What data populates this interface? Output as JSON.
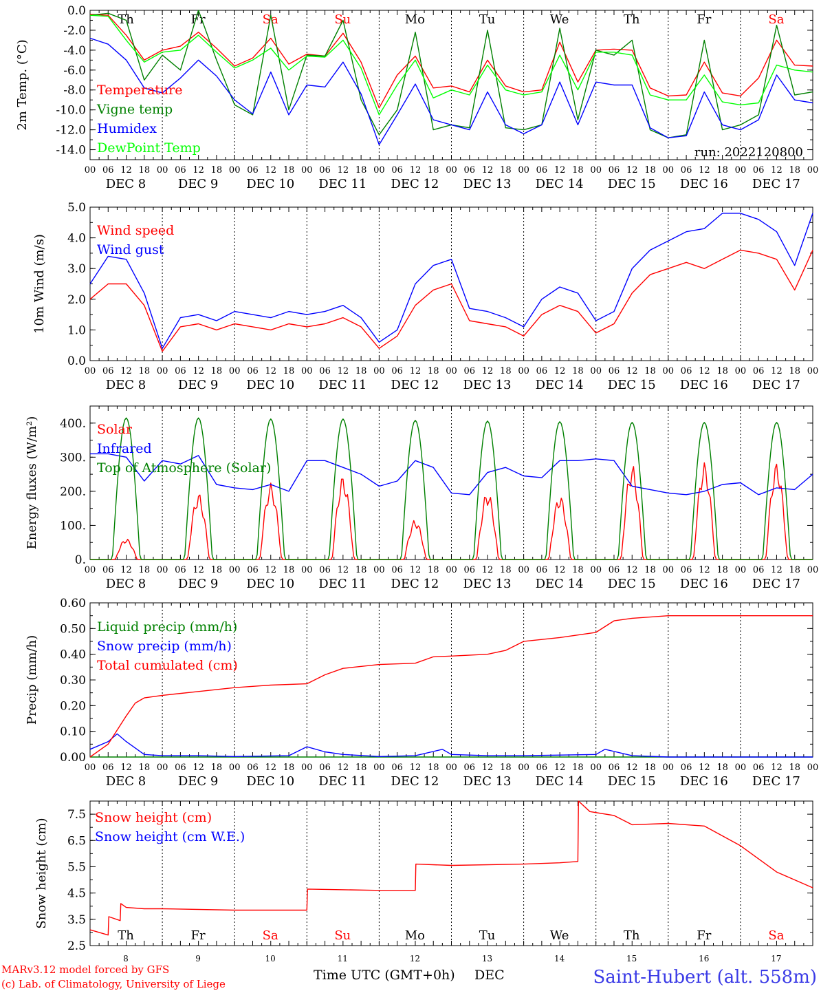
{
  "colors": {
    "red": "#ff0000",
    "green": "#008000",
    "blue": "#0000ff",
    "light_green": "#00ff00",
    "weekend_red": "#ff0000",
    "blue_title": "#3a3ae6"
  },
  "days": {
    "weekday_labels": [
      "Th",
      "Fr",
      "Sa",
      "Su",
      "Mo",
      "Tu",
      "We",
      "Th",
      "Fr",
      "Sa"
    ],
    "weekend_flags": [
      false,
      false,
      true,
      true,
      false,
      false,
      false,
      false,
      false,
      true
    ],
    "date_labels": [
      "DEC  8",
      "DEC  9",
      "DEC 10",
      "DEC 11",
      "DEC 12",
      "DEC 13",
      "DEC 14",
      "DEC 15",
      "DEC 16",
      "DEC 17"
    ],
    "hour_labels": [
      "00",
      "06",
      "12",
      "18"
    ],
    "final_hour": "00",
    "day_numbers": [
      "8",
      "9",
      "10",
      "11",
      "12",
      "13",
      "14",
      "15",
      "16",
      "17"
    ]
  },
  "footer": {
    "credit1": "MARv3.12 model forced by GFS",
    "credit2": "(c) Lab. of Climatology, University of Liege",
    "xlabel": "Time UTC (GMT+0h)",
    "month": "DEC",
    "station": "Saint-Hubert (alt. 558m)"
  },
  "chart_data": [
    {
      "type": "line",
      "ylabel": "2m Temp. (°C)",
      "ylim": [
        -15,
        0
      ],
      "yticks": [
        "0.0",
        "-2.0",
        "-4.0",
        "-6.0",
        "-8.0",
        "-10.0",
        "-12.0",
        "-14.0"
      ],
      "ytick_values": [
        0,
        -2,
        -4,
        -6,
        -8,
        -10,
        -12,
        -14
      ],
      "annotation": "run: 2022120800",
      "x_unit": "hours since DEC 8 00 UTC",
      "series": [
        {
          "name": "Temperature",
          "color": "#ff0000",
          "x": [
            0,
            6,
            12,
            18,
            24,
            30,
            36,
            42,
            48,
            54,
            60,
            66,
            72,
            78,
            84,
            90,
            96,
            102,
            108,
            114,
            120,
            126,
            132,
            138,
            144,
            150,
            156,
            162,
            168,
            174,
            180,
            186,
            192,
            198,
            204,
            210,
            216,
            222,
            228,
            234,
            240
          ],
          "values": [
            -0.4,
            -0.5,
            -2.5,
            -5.0,
            -4.0,
            -3.6,
            -2.2,
            -3.8,
            -5.6,
            -4.8,
            -2.8,
            -5.4,
            -4.4,
            -4.6,
            -2.3,
            -5.2,
            -9.8,
            -6.5,
            -4.6,
            -7.8,
            -7.6,
            -8.2,
            -5.0,
            -7.6,
            -8.2,
            -8.0,
            -3.2,
            -7.2,
            -4.0,
            -3.9,
            -4.0,
            -7.8,
            -8.6,
            -8.5,
            -5.2,
            -8.3,
            -8.6,
            -6.8,
            -3.0,
            -5.5,
            -5.6
          ]
        },
        {
          "name": "Vigne temp",
          "color": "#008000",
          "x": [
            0,
            6,
            12,
            18,
            24,
            30,
            36,
            42,
            48,
            54,
            60,
            66,
            72,
            78,
            84,
            90,
            96,
            102,
            108,
            114,
            120,
            126,
            132,
            138,
            144,
            150,
            156,
            162,
            168,
            174,
            180,
            186,
            192,
            198,
            204,
            210,
            216,
            222,
            228,
            234,
            240
          ],
          "values": [
            -0.5,
            -0.3,
            -1.0,
            -7.0,
            -4.5,
            -6.0,
            0.0,
            -5.0,
            -9.5,
            -10.5,
            -0.5,
            -10.0,
            -4.5,
            -4.6,
            -1.0,
            -9.0,
            -12.5,
            -10.0,
            -2.2,
            -12.0,
            -11.5,
            -11.8,
            -2.0,
            -11.8,
            -12.0,
            -11.5,
            -1.8,
            -11.0,
            -4.0,
            -4.5,
            -3.0,
            -12.0,
            -12.8,
            -12.5,
            -3.0,
            -12.0,
            -11.5,
            -10.5,
            -1.5,
            -8.5,
            -8.2
          ]
        },
        {
          "name": "Humidex",
          "color": "#0000ff",
          "x": [
            0,
            6,
            12,
            18,
            24,
            30,
            36,
            42,
            48,
            54,
            60,
            66,
            72,
            78,
            84,
            90,
            96,
            102,
            108,
            114,
            120,
            126,
            132,
            138,
            144,
            150,
            156,
            162,
            168,
            174,
            180,
            186,
            192,
            198,
            204,
            210,
            216,
            222,
            228,
            234,
            240
          ],
          "values": [
            -2.8,
            -3.4,
            -5.0,
            -7.8,
            -8.3,
            -6.8,
            -5.0,
            -6.6,
            -9.0,
            -10.4,
            -6.2,
            -10.5,
            -7.5,
            -7.7,
            -5.2,
            -8.4,
            -13.5,
            -10.5,
            -7.4,
            -11.0,
            -11.5,
            -12.0,
            -8.2,
            -11.5,
            -12.4,
            -11.5,
            -7.2,
            -11.5,
            -7.2,
            -7.5,
            -7.5,
            -11.8,
            -12.8,
            -12.6,
            -8.2,
            -11.5,
            -12.0,
            -11.0,
            -6.5,
            -9.0,
            -9.3
          ]
        },
        {
          "name": "DewPoint Temp",
          "color": "#00ff00",
          "x": [
            0,
            6,
            12,
            18,
            24,
            30,
            36,
            42,
            48,
            54,
            60,
            66,
            72,
            78,
            84,
            90,
            96,
            102,
            108,
            114,
            120,
            126,
            132,
            138,
            144,
            150,
            156,
            162,
            168,
            174,
            180,
            186,
            192,
            198,
            204,
            210,
            216,
            222,
            228,
            234,
            240
          ],
          "values": [
            -0.5,
            -0.6,
            -3.0,
            -5.2,
            -4.2,
            -4.0,
            -2.5,
            -4.2,
            -5.8,
            -5.0,
            -3.8,
            -6.0,
            -4.6,
            -4.7,
            -3.0,
            -5.8,
            -10.5,
            -7.5,
            -5.0,
            -8.8,
            -8.0,
            -8.5,
            -5.5,
            -8.0,
            -8.5,
            -8.2,
            -4.5,
            -8.0,
            -4.2,
            -4.2,
            -4.5,
            -8.5,
            -9.0,
            -9.0,
            -6.5,
            -9.2,
            -9.5,
            -9.3,
            -5.5,
            -6.0,
            -6.2
          ]
        }
      ]
    },
    {
      "type": "line",
      "ylabel": "10m Wind (m/s)",
      "ylim": [
        0,
        5
      ],
      "yticks": [
        "0.0",
        "1.0",
        "2.0",
        "3.0",
        "4.0",
        "5.0"
      ],
      "ytick_values": [
        0,
        1,
        2,
        3,
        4,
        5
      ],
      "x_unit": "hours since DEC 8 00 UTC",
      "series": [
        {
          "name": "Wind speed",
          "color": "#ff0000",
          "x": [
            0,
            6,
            12,
            18,
            24,
            30,
            36,
            42,
            48,
            54,
            60,
            66,
            72,
            78,
            84,
            90,
            96,
            102,
            108,
            114,
            120,
            126,
            132,
            138,
            144,
            150,
            156,
            162,
            168,
            174,
            180,
            186,
            192,
            198,
            204,
            210,
            216,
            222,
            228,
            234,
            240
          ],
          "values": [
            2.0,
            2.5,
            2.5,
            1.8,
            0.3,
            1.1,
            1.2,
            1.0,
            1.2,
            1.1,
            1.0,
            1.2,
            1.1,
            1.2,
            1.4,
            1.1,
            0.4,
            0.8,
            1.8,
            2.3,
            2.5,
            1.3,
            1.2,
            1.1,
            0.8,
            1.5,
            1.8,
            1.6,
            0.9,
            1.2,
            2.2,
            2.8,
            3.0,
            3.2,
            3.0,
            3.3,
            3.6,
            3.5,
            3.3,
            2.3,
            3.6
          ]
        },
        {
          "name": "Wind gust",
          "color": "#0000ff",
          "x": [
            0,
            6,
            12,
            18,
            24,
            30,
            36,
            42,
            48,
            54,
            60,
            66,
            72,
            78,
            84,
            90,
            96,
            102,
            108,
            114,
            120,
            126,
            132,
            138,
            144,
            150,
            156,
            162,
            168,
            174,
            180,
            186,
            192,
            198,
            204,
            210,
            216,
            222,
            228,
            234,
            240
          ],
          "values": [
            2.5,
            3.4,
            3.3,
            2.2,
            0.4,
            1.4,
            1.5,
            1.3,
            1.6,
            1.5,
            1.4,
            1.6,
            1.5,
            1.6,
            1.8,
            1.4,
            0.6,
            1.0,
            2.5,
            3.1,
            3.3,
            1.7,
            1.6,
            1.4,
            1.1,
            2.0,
            2.4,
            2.2,
            1.3,
            1.6,
            3.0,
            3.6,
            3.9,
            4.2,
            4.3,
            4.8,
            4.8,
            4.6,
            4.2,
            3.1,
            4.8
          ]
        }
      ]
    },
    {
      "type": "line",
      "ylabel": "Energy fluxes (W/m²)",
      "ylim": [
        0,
        450
      ],
      "yticks": [
        "0.",
        "100.",
        "200.",
        "300.",
        "400."
      ],
      "ytick_values": [
        0,
        100,
        200,
        300,
        400
      ],
      "x_unit": "hours since DEC 8 00 UTC",
      "solar_peak_hour_of_day": 12,
      "series": [
        {
          "name": "Solar",
          "color": "#ff0000",
          "daily_peak": [
            55,
            175,
            200,
            220,
            105,
            180,
            170,
            250,
            255,
            255
          ]
        },
        {
          "name": "Infrared",
          "color": "#0000ff",
          "x": [
            0,
            6,
            12,
            18,
            24,
            30,
            36,
            42,
            48,
            54,
            60,
            66,
            72,
            78,
            84,
            90,
            96,
            102,
            108,
            114,
            120,
            126,
            132,
            138,
            144,
            150,
            156,
            162,
            168,
            174,
            180,
            186,
            192,
            198,
            204,
            210,
            216,
            222,
            228,
            234,
            240
          ],
          "values": [
            310,
            310,
            300,
            230,
            290,
            280,
            305,
            220,
            210,
            205,
            220,
            200,
            290,
            290,
            270,
            250,
            215,
            230,
            290,
            270,
            195,
            190,
            255,
            270,
            245,
            240,
            290,
            290,
            295,
            290,
            215,
            205,
            195,
            190,
            200,
            220,
            225,
            190,
            210,
            205,
            250
          ]
        },
        {
          "name": "Top of Atmosphere (Solar)",
          "color": "#008000",
          "daily_peak": [
            415,
            415,
            412,
            412,
            408,
            406,
            404,
            402,
            402,
            402
          ]
        }
      ]
    },
    {
      "type": "line",
      "ylabel": "Precip (mm/h)",
      "ylim": [
        0,
        0.6
      ],
      "yticks": [
        "0.00",
        "0.10",
        "0.20",
        "0.30",
        "0.40",
        "0.50",
        "0.60"
      ],
      "ytick_values": [
        0,
        0.1,
        0.2,
        0.3,
        0.4,
        0.5,
        0.6
      ],
      "x_unit": "hours since DEC 8 00 UTC",
      "series": [
        {
          "name": "Liquid precip (mm/h)",
          "color": "#008000",
          "x": [
            0,
            240
          ],
          "values": [
            0,
            0
          ]
        },
        {
          "name": "Snow precip (mm/h)",
          "color": "#0000ff",
          "x": [
            0,
            6,
            9,
            12,
            18,
            24,
            36,
            48,
            66,
            72,
            78,
            84,
            96,
            108,
            117,
            120,
            132,
            144,
            168,
            171,
            180,
            192,
            216,
            240
          ],
          "values": [
            0.03,
            0.06,
            0.09,
            0.06,
            0.01,
            0.005,
            0.005,
            0.002,
            0.005,
            0.04,
            0.02,
            0.01,
            0.002,
            0.005,
            0.03,
            0.01,
            0.005,
            0.005,
            0.01,
            0.03,
            0.005,
            0.0,
            0.0,
            0.0
          ]
        },
        {
          "name": "Total cumulated (cm)",
          "color": "#ff0000",
          "x": [
            0,
            6,
            12,
            15,
            18,
            24,
            36,
            48,
            60,
            72,
            78,
            84,
            96,
            108,
            114,
            120,
            132,
            138,
            144,
            156,
            168,
            174,
            180,
            192,
            240
          ],
          "values": [
            0.0,
            0.05,
            0.16,
            0.21,
            0.23,
            0.24,
            0.255,
            0.27,
            0.28,
            0.285,
            0.32,
            0.345,
            0.36,
            0.365,
            0.39,
            0.393,
            0.4,
            0.415,
            0.45,
            0.465,
            0.485,
            0.53,
            0.54,
            0.55,
            0.55
          ]
        }
      ]
    },
    {
      "type": "line",
      "ylabel": "Snow height (cm)",
      "ylim": [
        2.5,
        8.0
      ],
      "yticks": [
        "2.5",
        "3.5",
        "4.5",
        "5.5",
        "6.5",
        "7.5"
      ],
      "ytick_values": [
        2.5,
        3.5,
        4.5,
        5.5,
        6.5,
        7.5
      ],
      "x_unit": "hours since DEC 8 00 UTC",
      "series": [
        {
          "name": "Snow height (cm)",
          "color": "#ff0000",
          "x": [
            0,
            6,
            6.2,
            10,
            10.2,
            12,
            18,
            24,
            48,
            72,
            72.2,
            96,
            108,
            108.2,
            120,
            144,
            156,
            162,
            162.2,
            166,
            174,
            180,
            192,
            204,
            216,
            228,
            240
          ],
          "values": [
            3.1,
            2.9,
            3.6,
            3.45,
            4.1,
            3.95,
            3.9,
            3.9,
            3.85,
            3.85,
            4.65,
            4.6,
            4.6,
            5.6,
            5.55,
            5.6,
            5.65,
            5.7,
            8.0,
            7.6,
            7.45,
            7.1,
            7.15,
            7.05,
            6.3,
            5.3,
            4.7
          ]
        },
        {
          "name": "Snow height (cm W.E.)",
          "color": "#0000ff",
          "x": [],
          "values": []
        }
      ]
    }
  ]
}
